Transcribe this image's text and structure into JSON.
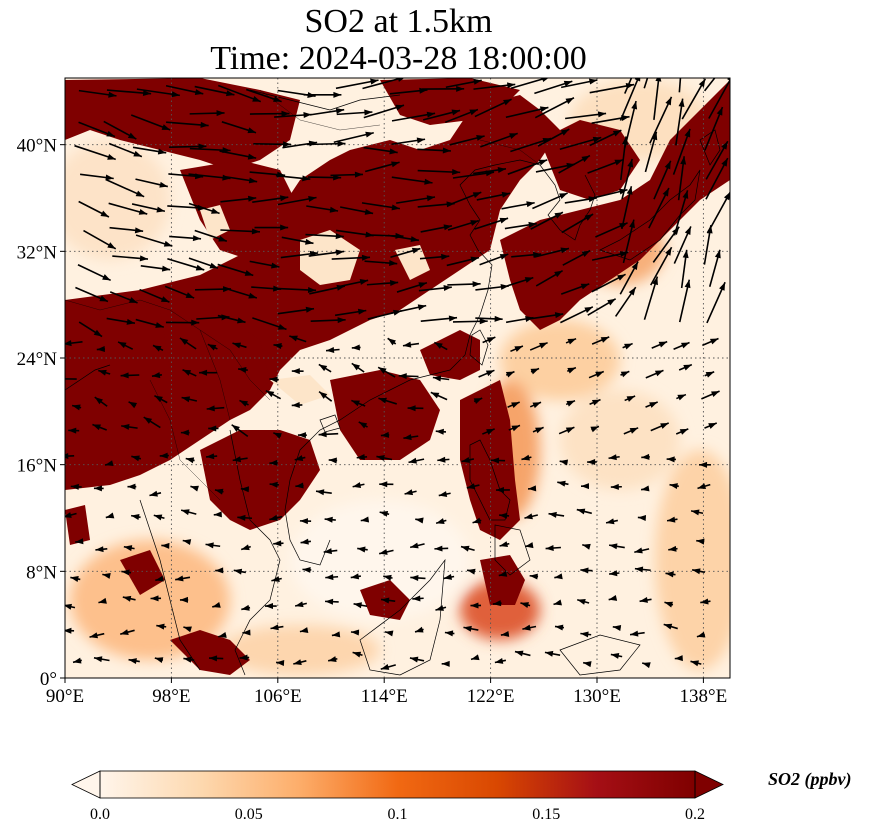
{
  "title": {
    "line1": "SO2 at 1.5km",
    "line2": "Time: 2024-03-28 18:00:00"
  },
  "map": {
    "lon_range": [
      90,
      140
    ],
    "lat_range": [
      0,
      45
    ],
    "lon_ticks": [
      "90°E",
      "98°E",
      "106°E",
      "114°E",
      "122°E",
      "130°E",
      "138°E"
    ],
    "lon_tick_values": [
      90,
      98,
      106,
      114,
      122,
      130,
      138
    ],
    "lat_ticks": [
      "0°",
      "8°N",
      "16°N",
      "24°N",
      "32°N",
      "40°N"
    ],
    "lat_tick_values": [
      0,
      8,
      16,
      24,
      32,
      40
    ],
    "gridlines": "dotted",
    "field_variable": "SO2",
    "vectors": "wind"
  },
  "colorbar": {
    "label": "SO2 (ppbv)",
    "ticks": [
      "0.0",
      "0.05",
      "0.1",
      "0.15",
      "0.2"
    ],
    "tick_values": [
      0,
      0.05,
      0.1,
      0.15,
      0.2
    ],
    "extend": "both",
    "colormap": [
      "#fff5eb",
      "#fdd9b0",
      "#fdae6b",
      "#f16913",
      "#d94801",
      "#a50f15",
      "#7f0000"
    ]
  },
  "colors": {
    "high": "#7f0000",
    "mid": "#e6550d",
    "low": "#fff5eb",
    "coast": "#000000",
    "arrow": "#000000"
  }
}
